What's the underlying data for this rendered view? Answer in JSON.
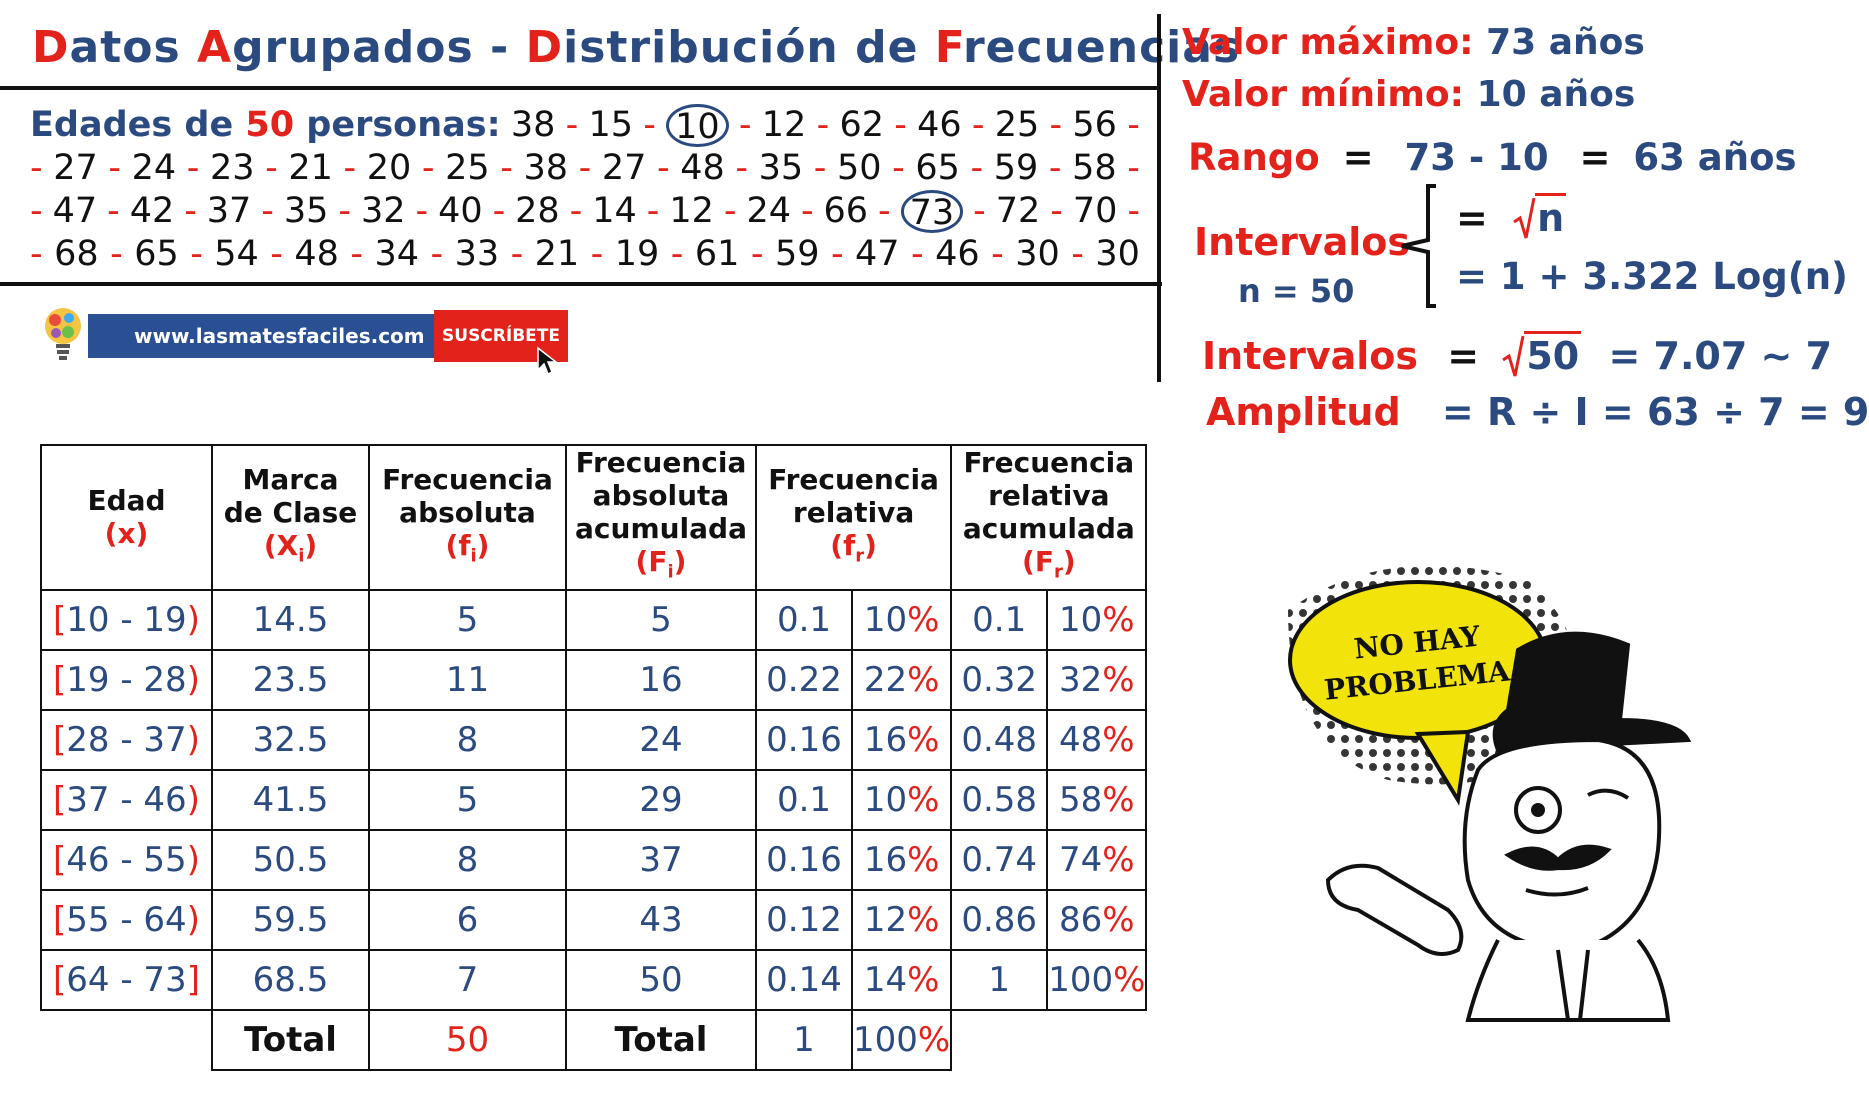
{
  "title": {
    "parts": [
      {
        "t": "D",
        "c": "red"
      },
      {
        "t": "atos ",
        "c": "blue"
      },
      {
        "t": "A",
        "c": "red"
      },
      {
        "t": "grupados - ",
        "c": "blue"
      },
      {
        "t": "D",
        "c": "red"
      },
      {
        "t": "istribución de ",
        "c": "blue"
      },
      {
        "t": "F",
        "c": "red"
      },
      {
        "t": "recuencias",
        "c": "blue"
      }
    ]
  },
  "ages": {
    "lead_text": "Edades de",
    "lead_num": "50",
    "lead_rest": "personas:",
    "rows": [
      [
        "38",
        "15",
        "10",
        "12",
        "62",
        "46",
        "25",
        "56"
      ],
      [
        "27",
        "24",
        "23",
        "21",
        "20",
        "25",
        "38",
        "27",
        "48",
        "35",
        "50",
        "65",
        "59",
        "58"
      ],
      [
        "47",
        "42",
        "37",
        "35",
        "32",
        "40",
        "28",
        "14",
        "12",
        "24",
        "66",
        "73",
        "72",
        "70"
      ],
      [
        "68",
        "65",
        "54",
        "48",
        "34",
        "33",
        "21",
        "19",
        "61",
        "59",
        "47",
        "46",
        "30",
        "30"
      ]
    ],
    "circled": [
      "10",
      "73"
    ]
  },
  "banner": {
    "url": "www.lasmatesfaciles.com",
    "cta": "SUSCRÍBETE"
  },
  "stats": {
    "max_label": "Valor máximo:",
    "max_value": "73 años",
    "min_label": "Valor mínimo:",
    "min_value": "10 años",
    "range_label": "Rango",
    "range_eq": "=",
    "range_expr": "73 - 10",
    "range_eq2": "=",
    "range_result": "63 años",
    "intervals_label": "Intervalos",
    "n_label": "n = 50",
    "formula1_eq": "=",
    "formula1_rad": "n",
    "formula2": "= 1 + 3.322 Log(n)",
    "int_calc_label": "Intervalos",
    "int_calc_eq": "=",
    "int_calc_rad": "50",
    "int_calc_result": "= 7.07 ~ 7",
    "amp_label": "Amplitud",
    "amp_expr": "= R ÷ I = 63 ÷ 7 = 9"
  },
  "table": {
    "headers": [
      {
        "l1": "Edad",
        "sym": "(x)",
        "sub": ""
      },
      {
        "l1": "Marca",
        "l2": "de Clase",
        "sym": "(X",
        "sub": "i",
        "close": ")"
      },
      {
        "l1": "Frecuencia",
        "l2": "absoluta",
        "sym": "(f",
        "sub": "i",
        "close": ")"
      },
      {
        "l1": "Frecuencia",
        "l2": "absoluta",
        "l3": "acumulada",
        "sym": "(F",
        "sub": "i",
        "close": ")"
      },
      {
        "l1": "Frecuencia",
        "l2": "relativa",
        "sym": "(f",
        "sub": "r",
        "close": ")"
      },
      {
        "l1": "Frecuencia",
        "l2": "relativa",
        "l3": "acumulada",
        "sym": "(F",
        "sub": "r",
        "close": ")"
      }
    ],
    "rows": [
      {
        "open": "[",
        "range": "10 - 19",
        "close": ")",
        "mark": "14.5",
        "fi": "5",
        "Fi": "5",
        "fr": "0.1",
        "fr_pct": "10",
        "Fr": "0.1",
        "Fr_pct": "10"
      },
      {
        "open": "[",
        "range": "19 - 28",
        "close": ")",
        "mark": "23.5",
        "fi": "11",
        "Fi": "16",
        "fr": "0.22",
        "fr_pct": "22",
        "Fr": "0.32",
        "Fr_pct": "32"
      },
      {
        "open": "[",
        "range": "28 - 37",
        "close": ")",
        "mark": "32.5",
        "fi": "8",
        "Fi": "24",
        "fr": "0.16",
        "fr_pct": "16",
        "Fr": "0.48",
        "Fr_pct": "48"
      },
      {
        "open": "[",
        "range": "37 - 46",
        "close": ")",
        "mark": "41.5",
        "fi": "5",
        "Fi": "29",
        "fr": "0.1",
        "fr_pct": "10",
        "Fr": "0.58",
        "Fr_pct": "58"
      },
      {
        "open": "[",
        "range": "46 - 55",
        "close": ")",
        "mark": "50.5",
        "fi": "8",
        "Fi": "37",
        "fr": "0.16",
        "fr_pct": "16",
        "Fr": "0.74",
        "Fr_pct": "74"
      },
      {
        "open": "[",
        "range": "55 - 64",
        "close": ")",
        "mark": "59.5",
        "fi": "6",
        "Fi": "43",
        "fr": "0.12",
        "fr_pct": "12",
        "Fr": "0.86",
        "Fr_pct": "86"
      },
      {
        "open": "[",
        "range": "64 - 73",
        "close": "]",
        "mark": "68.5",
        "fi": "7",
        "Fi": "50",
        "fr": "0.14",
        "fr_pct": "14",
        "Fr": "1",
        "Fr_pct": "100"
      }
    ],
    "total_label_1": "Total",
    "total_fi": "50",
    "total_label_2": "Total",
    "total_fr": "1",
    "total_fr_pct": "100"
  },
  "meme": {
    "bubble_line1": "NO HAY",
    "bubble_line2": "PROBLEMA"
  },
  "colors": {
    "red": "#e3231b",
    "blue": "#2a4a80",
    "yellow": "#f2e30a"
  }
}
